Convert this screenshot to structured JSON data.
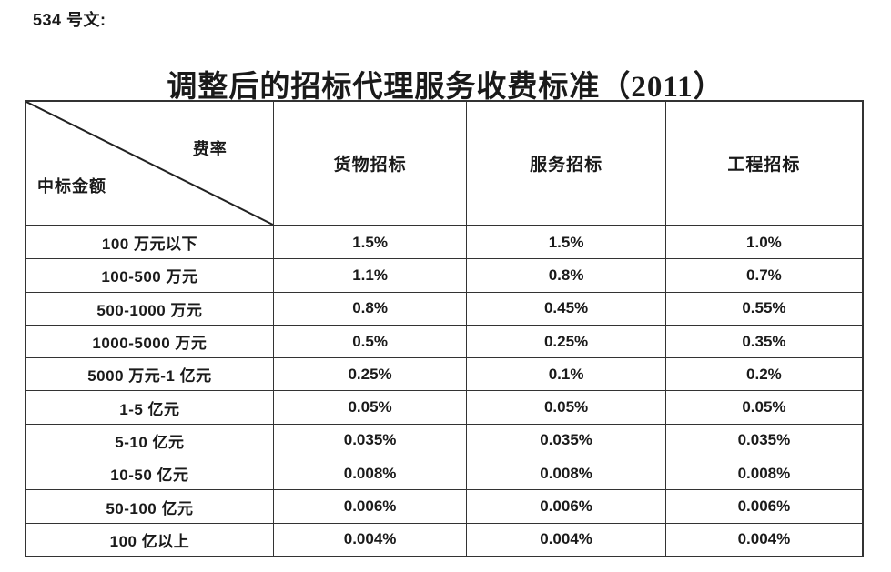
{
  "doc_label": "534 号文:",
  "title": "调整后的招标代理服务收费标准（2011）",
  "table": {
    "corner": {
      "top_right": "费率",
      "bottom_left": "中标金额"
    },
    "columns": [
      "货物招标",
      "服务招标",
      "工程招标"
    ],
    "rows": [
      {
        "label": "100 万元以下",
        "values": [
          "1.5%",
          "1.5%",
          "1.0%"
        ]
      },
      {
        "label": "100-500 万元",
        "values": [
          "1.1%",
          "0.8%",
          "0.7%"
        ]
      },
      {
        "label": "500-1000 万元",
        "values": [
          "0.8%",
          "0.45%",
          "0.55%"
        ]
      },
      {
        "label": "1000-5000 万元",
        "values": [
          "0.5%",
          "0.25%",
          "0.35%"
        ]
      },
      {
        "label": "5000 万元-1 亿元",
        "values": [
          "0.25%",
          "0.1%",
          "0.2%"
        ]
      },
      {
        "label": "1-5 亿元",
        "values": [
          "0.05%",
          "0.05%",
          "0.05%"
        ]
      },
      {
        "label": "5-10 亿元",
        "values": [
          "0.035%",
          "0.035%",
          "0.035%"
        ]
      },
      {
        "label": "10-50 亿元",
        "values": [
          "0.008%",
          "0.008%",
          "0.008%"
        ]
      },
      {
        "label": "50-100 亿元",
        "values": [
          "0.006%",
          "0.006%",
          "0.006%"
        ]
      },
      {
        "label": "100 亿以上",
        "values": [
          "0.004%",
          "0.004%",
          "0.004%"
        ]
      }
    ]
  },
  "colors": {
    "border": "#333333",
    "text": "#1a1a1a",
    "background": "#ffffff"
  }
}
